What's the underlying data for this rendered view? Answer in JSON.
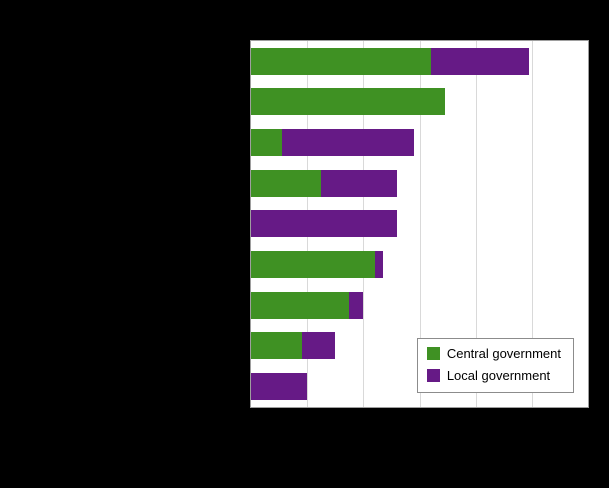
{
  "chart_data": {
    "type": "bar",
    "orientation": "horizontal",
    "stacked": true,
    "title": "",
    "xlabel": "",
    "ylabel": "",
    "categories": [
      "",
      "",
      "",
      "",
      "",
      "",
      "",
      "",
      ""
    ],
    "series": [
      {
        "name": "Central government",
        "color": "#3f9123",
        "values": [
          3.2,
          3.45,
          0.55,
          1.25,
          0,
          2.2,
          1.75,
          0.9,
          0
        ]
      },
      {
        "name": "Local government",
        "color": "#661a86",
        "values": [
          1.75,
          0,
          2.35,
          1.35,
          2.6,
          0.15,
          0.25,
          0.6,
          1.0
        ]
      }
    ],
    "xlim": [
      0,
      6
    ],
    "gridlines_every": 1,
    "grid": true,
    "legend_position": "inside-bottom-right",
    "plot_background": "#ffffff",
    "page_background": "#000000",
    "gridline_color": "#d9d9d9"
  }
}
